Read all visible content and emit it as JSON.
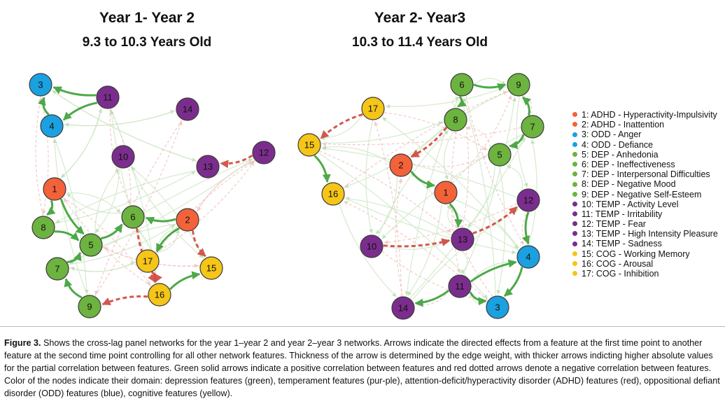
{
  "panels": [
    {
      "title": "Year 1- Year 2",
      "subtitle": "9.3 to 10.3 Years Old",
      "nodes": [
        {
          "id": "1"
        },
        {
          "id": "2"
        },
        {
          "id": "3"
        },
        {
          "id": "4"
        },
        {
          "id": "5"
        },
        {
          "id": "6"
        },
        {
          "id": "7"
        },
        {
          "id": "8"
        },
        {
          "id": "9"
        },
        {
          "id": "10"
        },
        {
          "id": "11"
        },
        {
          "id": "12"
        },
        {
          "id": "13"
        },
        {
          "id": "14"
        },
        {
          "id": "15"
        },
        {
          "id": "16"
        },
        {
          "id": "17"
        }
      ],
      "strong_edges": [
        {
          "from": "11",
          "to": "3",
          "sign": "positive"
        },
        {
          "from": "11",
          "to": "4",
          "sign": "positive"
        },
        {
          "from": "2",
          "to": "6",
          "sign": "positive"
        },
        {
          "from": "2",
          "to": "15",
          "sign": "negative"
        },
        {
          "from": "12",
          "to": "13",
          "sign": "negative"
        },
        {
          "from": "2",
          "to": "17",
          "sign": "positive"
        },
        {
          "from": "1",
          "to": "8",
          "sign": "positive"
        },
        {
          "from": "1",
          "to": "5",
          "sign": "positive"
        },
        {
          "from": "8",
          "to": "5",
          "sign": "positive"
        },
        {
          "from": "5",
          "to": "6",
          "sign": "positive"
        },
        {
          "from": "16",
          "to": "15",
          "sign": "positive"
        },
        {
          "from": "7",
          "to": "5",
          "sign": "positive"
        },
        {
          "from": "9",
          "to": "7",
          "sign": "positive"
        },
        {
          "from": "16",
          "to": "9",
          "sign": "negative"
        },
        {
          "from": "17",
          "to": "16",
          "sign": "negative"
        },
        {
          "from": "6",
          "to": "16",
          "sign": "negative"
        },
        {
          "from": "4",
          "to": "3",
          "sign": "positive"
        }
      ]
    },
    {
      "title": "Year 2- Year3",
      "subtitle": "10.3 to 11.4 Years Old",
      "nodes": [
        {
          "id": "1"
        },
        {
          "id": "2"
        },
        {
          "id": "3"
        },
        {
          "id": "4"
        },
        {
          "id": "5"
        },
        {
          "id": "6"
        },
        {
          "id": "7"
        },
        {
          "id": "8"
        },
        {
          "id": "9"
        },
        {
          "id": "10"
        },
        {
          "id": "11"
        },
        {
          "id": "12"
        },
        {
          "id": "13"
        },
        {
          "id": "14"
        },
        {
          "id": "15"
        },
        {
          "id": "16"
        },
        {
          "id": "17"
        }
      ],
      "strong_edges": [
        {
          "from": "11",
          "to": "14",
          "sign": "positive"
        },
        {
          "from": "11",
          "to": "3",
          "sign": "positive"
        },
        {
          "from": "11",
          "to": "4",
          "sign": "positive"
        },
        {
          "from": "6",
          "to": "9",
          "sign": "positive"
        },
        {
          "from": "7",
          "to": "5",
          "sign": "positive"
        },
        {
          "from": "7",
          "to": "9",
          "sign": "positive"
        },
        {
          "from": "6",
          "to": "8",
          "sign": "positive"
        },
        {
          "from": "17",
          "to": "15",
          "sign": "negative"
        },
        {
          "from": "15",
          "to": "16",
          "sign": "positive"
        },
        {
          "from": "13",
          "to": "12",
          "sign": "negative"
        },
        {
          "from": "1",
          "to": "13",
          "sign": "positive"
        },
        {
          "from": "2",
          "to": "1",
          "sign": "positive"
        },
        {
          "from": "8",
          "to": "2",
          "sign": "negative"
        },
        {
          "from": "12",
          "to": "4",
          "sign": "positive"
        },
        {
          "from": "4",
          "to": "3",
          "sign": "positive"
        },
        {
          "from": "10",
          "to": "13",
          "sign": "negative"
        }
      ]
    }
  ],
  "legend": [
    {
      "label": "1: ADHD - Hyperactivity-Impulsivity",
      "color": "#f4623a"
    },
    {
      "label": "2: ADHD - Inattention",
      "color": "#f4623a"
    },
    {
      "label": "3: ODD - Anger",
      "color": "#1ba0e0"
    },
    {
      "label": "4: ODD - Defiance",
      "color": "#1ba0e0"
    },
    {
      "label": "5: DEP - Anhedonia",
      "color": "#6db33f"
    },
    {
      "label": "6: DEP - Ineffectiveness",
      "color": "#6db33f"
    },
    {
      "label": "7: DEP - Interpersonal Difficulties",
      "color": "#6db33f"
    },
    {
      "label": "8: DEP - Negative Mood",
      "color": "#6db33f"
    },
    {
      "label": "9: DEP - Negative Self-Esteem",
      "color": "#6db33f"
    },
    {
      "label": "10: TEMP - Activity Level",
      "color": "#7b2d8e"
    },
    {
      "label": "11: TEMP - Irritability",
      "color": "#7b2d8e"
    },
    {
      "label": "12: TEMP - Fear",
      "color": "#7b2d8e"
    },
    {
      "label": "13: TEMP - High Intensity Pleasure",
      "color": "#7b2d8e"
    },
    {
      "label": "14: TEMP - Sadness",
      "color": "#7b2d8e"
    },
    {
      "label": "15: COG - Working Memory",
      "color": "#f5c518"
    },
    {
      "label": "16: COG - Arousal",
      "color": "#f5c518"
    },
    {
      "label": "17: COG - Inhibition",
      "color": "#f5c518"
    }
  ],
  "colors": {
    "adhd": "#f4623a",
    "odd": "#1ba0e0",
    "dep": "#6db33f",
    "temp": "#7b2d8e",
    "cog": "#f5c518",
    "positive_edge": "#3aa035",
    "negative_edge": "#d0463c"
  },
  "caption": {
    "label": "Figure 3.",
    "text": "Shows the cross-lag panel networks for the year 1–year 2 and year 2–year 3 networks. Arrows indicate the directed effects from a feature at the first time point to another feature at the second time point controlling for all other network features. Thickness of the arrow is determined by the edge weight, with thicker arrows indicting higher absolute values for the partial correlation between features. Green solid arrows indicate a positive correlation between features and red dotted arrows denote a negative correlation between features. Color of the nodes indicate their domain: depression features (green), temperament features (pur-ple), attention-deficit/hyperactivity disorder (ADHD) features (red), oppositional defiant disorder (ODD) features (blue), cognitive features (yellow)."
  }
}
